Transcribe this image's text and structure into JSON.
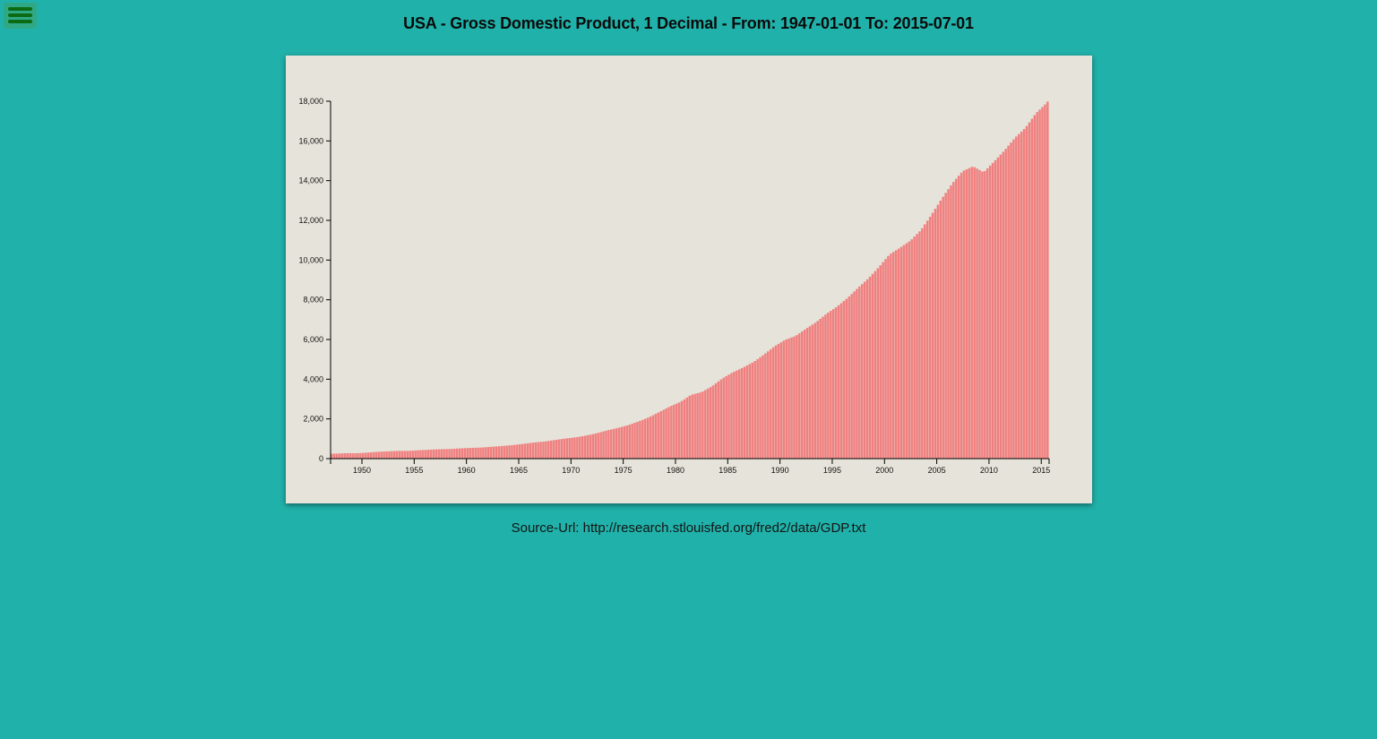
{
  "header": {
    "title": "USA - Gross Domestic Product, 1 Decimal - From: 1947-01-01 To: 2015-07-01"
  },
  "menu": {
    "icon": "hamburger-menu-icon",
    "color": "#0b6b12"
  },
  "footer": {
    "source_label": "Source-Url: ",
    "source_url": "http://research.stlouisfed.org/fred2/data/GDP.txt"
  },
  "colors": {
    "background": "#20b2aa",
    "panel": "#e6e4da",
    "bar": "#f08080"
  },
  "chart_data": {
    "type": "bar",
    "title": "",
    "xlabel": "",
    "ylabel": "",
    "x_start": "1947-01-01",
    "x_end": "2015-07-01",
    "frequency": "quarterly",
    "ylim": [
      0,
      18000
    ],
    "yticks": [
      0,
      2000,
      4000,
      6000,
      8000,
      10000,
      12000,
      14000,
      16000,
      18000
    ],
    "ytick_labels": [
      "0",
      "2,000",
      "4,000",
      "6,000",
      "8,000",
      "10,000",
      "12,000",
      "14,000",
      "16,000",
      "18,000"
    ],
    "xtick_labels": [
      "1950",
      "1955",
      "1960",
      "1965",
      "1970",
      "1975",
      "1980",
      "1985",
      "1990",
      "1995",
      "2000",
      "2005",
      "2010",
      "2015"
    ],
    "grid": false,
    "legend": "none",
    "annual_values": {
      "1947": 250,
      "1948": 275,
      "1949": 270,
      "1950": 300,
      "1951": 345,
      "1952": 365,
      "1953": 390,
      "1954": 390,
      "1955": 425,
      "1956": 450,
      "1957": 475,
      "1958": 485,
      "1959": 520,
      "1960": 540,
      "1961": 560,
      "1962": 600,
      "1963": 640,
      "1964": 685,
      "1965": 745,
      "1966": 815,
      "1967": 860,
      "1968": 940,
      "1969": 1015,
      "1970": 1075,
      "1971": 1165,
      "1972": 1280,
      "1973": 1425,
      "1974": 1545,
      "1975": 1685,
      "1976": 1875,
      "1977": 2085,
      "1978": 2355,
      "1979": 2630,
      "1980": 2860,
      "1981": 3210,
      "1982": 3345,
      "1983": 3640,
      "1984": 4040,
      "1985": 4345,
      "1986": 4590,
      "1987": 4870,
      "1988": 5250,
      "1989": 5660,
      "1990": 5980,
      "1991": 6175,
      "1992": 6540,
      "1993": 6880,
      "1994": 7310,
      "1995": 7665,
      "1996": 8100,
      "1997": 8610,
      "1998": 9090,
      "1999": 9660,
      "2000": 10285,
      "2001": 10620,
      "2002": 10980,
      "2003": 11510,
      "2004": 12275,
      "2005": 13095,
      "2006": 13860,
      "2007": 14480,
      "2008": 14720,
      "2009": 14420,
      "2010": 14960,
      "2011": 15520,
      "2012": 16160,
      "2013": 16660,
      "2014": 17390,
      "2015": 17900
    },
    "final_value": 18060
  }
}
